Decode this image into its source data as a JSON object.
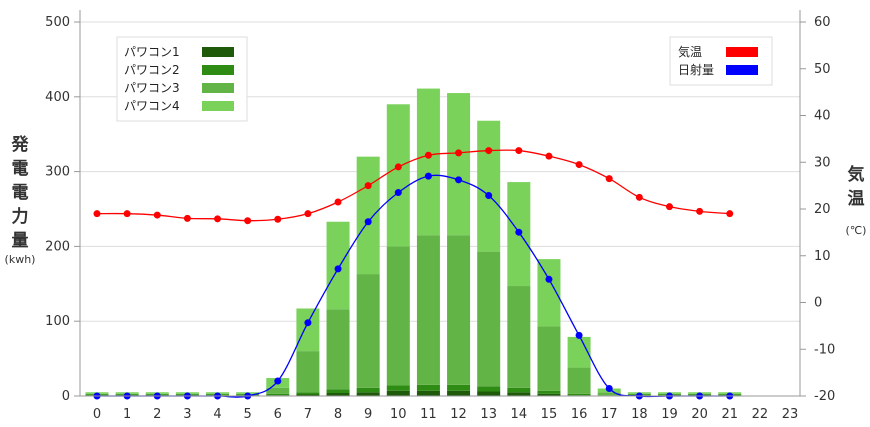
{
  "chart_data": {
    "type": "bar",
    "categories": [
      "0",
      "1",
      "2",
      "3",
      "4",
      "5",
      "6",
      "7",
      "8",
      "9",
      "10",
      "11",
      "12",
      "13",
      "14",
      "15",
      "16",
      "17",
      "18",
      "19",
      "20",
      "21",
      "22",
      "23"
    ],
    "series": [
      {
        "name": "パワコン1",
        "values": [
          1,
          1,
          1,
          1,
          1,
          1,
          1,
          2,
          4,
          5,
          7,
          7,
          7,
          6,
          5,
          3,
          1,
          0,
          1,
          1,
          1,
          1,
          0,
          0
        ]
      },
      {
        "name": "パワコン2",
        "values": [
          1,
          1,
          1,
          1,
          1,
          1,
          2,
          3,
          5,
          6,
          7,
          8,
          8,
          7,
          6,
          4,
          2,
          1,
          1,
          1,
          1,
          1,
          0,
          0
        ]
      },
      {
        "name": "パワコン3",
        "values": [
          1,
          1,
          1,
          1,
          1,
          1,
          8,
          55,
          107,
          152,
          186,
          200,
          200,
          180,
          136,
          86,
          35,
          4,
          1,
          1,
          1,
          1,
          0,
          0
        ]
      },
      {
        "name": "パワコン4",
        "values": [
          2,
          2,
          2,
          2,
          2,
          2,
          13,
          57,
          117,
          157,
          190,
          196,
          190,
          175,
          139,
          90,
          41,
          5,
          2,
          2,
          2,
          2,
          0,
          0
        ]
      },
      {
        "name": "気温",
        "axis": "right",
        "x": [
          0,
          1,
          2,
          3,
          4,
          5,
          6,
          7,
          8,
          9,
          10,
          11,
          12,
          13,
          14,
          15,
          16,
          17,
          18,
          19,
          20,
          21
        ],
        "values": [
          19,
          19,
          18.7,
          18,
          17.9,
          17.5,
          17.8,
          19,
          21.5,
          25,
          29,
          31.5,
          32,
          32.5,
          32.5,
          31.3,
          29.5,
          26.5,
          22.5,
          20.5,
          19.5,
          19
        ]
      },
      {
        "name": "日射量",
        "axis": "left",
        "x": [
          0,
          1,
          2,
          3,
          4,
          5,
          6,
          7,
          8,
          9,
          10,
          11,
          12,
          13,
          14,
          15,
          16,
          17,
          18,
          19,
          20,
          21
        ],
        "values": [
          0,
          0,
          0,
          0,
          0,
          0,
          20,
          98,
          170,
          233,
          272,
          294,
          289,
          268,
          219,
          156,
          81,
          10,
          0,
          0,
          0,
          0
        ]
      }
    ],
    "ylabel": "発電電力量",
    "ylabel_unit": "(kwh)",
    "y2label": "気温",
    "y2label_unit": "(℃)",
    "ylim": [
      0,
      500
    ],
    "yticks": [
      "0",
      "100",
      "200",
      "300",
      "400",
      "500"
    ],
    "y2lim": [
      -20,
      60
    ],
    "y2ticks": [
      "-20",
      "-10",
      "0",
      "10",
      "20",
      "30",
      "40",
      "50",
      "60"
    ],
    "grid": "horizontal",
    "legend_left_placement": "top-left",
    "legend_right_placement": "top-right",
    "colors": {
      "パワコン1": "#1e5a0a",
      "パワコン2": "#2e8c14",
      "パワコン3": "#62b446",
      "パワコン4": "#7ad25a",
      "気温": "#ff0000",
      "日射量": "#0000ff"
    }
  }
}
